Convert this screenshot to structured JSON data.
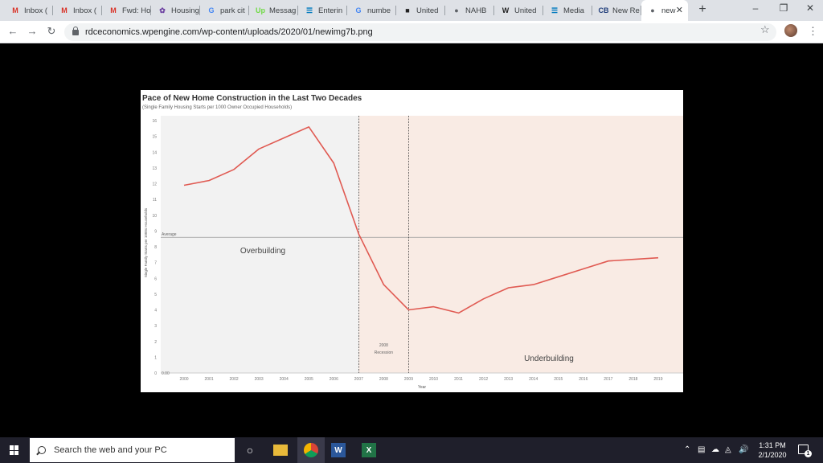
{
  "browser": {
    "tabs": [
      {
        "label": "Inbox (",
        "icon": "gmail-icon",
        "fav": "M",
        "color": "#d93025"
      },
      {
        "label": "Inbox (",
        "icon": "gmail-icon",
        "fav": "M",
        "color": "#d93025"
      },
      {
        "label": "Fwd: Ho",
        "icon": "gmail-icon",
        "fav": "M",
        "color": "#d93025"
      },
      {
        "label": "Housing",
        "icon": "peacock-icon",
        "fav": "✿",
        "color": "#6b3fa0"
      },
      {
        "label": "park cit",
        "icon": "google-icon",
        "fav": "G",
        "color": "#4285f4"
      },
      {
        "label": "Messag",
        "icon": "upwork-icon",
        "fav": "Up",
        "color": "#6fda44"
      },
      {
        "label": "Enterin",
        "icon": "trello-icon",
        "fav": "☰",
        "color": "#0079bf"
      },
      {
        "label": "numbe",
        "icon": "google-icon",
        "fav": "G",
        "color": "#4285f4"
      },
      {
        "label": "United",
        "icon": "census-icon",
        "fav": "■",
        "color": "#222"
      },
      {
        "label": "NAHB",
        "icon": "globe-icon",
        "fav": "●",
        "color": "#5f6368"
      },
      {
        "label": "United",
        "icon": "wikipedia-icon",
        "fav": "W",
        "color": "#222"
      },
      {
        "label": "Media",
        "icon": "trello-icon",
        "fav": "☰",
        "color": "#0079bf"
      },
      {
        "label": "New Re",
        "icon": "cb-icon",
        "fav": "CB",
        "color": "#1f3d7a"
      },
      {
        "label": "new",
        "icon": "globe-icon",
        "fav": "●",
        "color": "#5f6368"
      }
    ],
    "new_tab": "+",
    "minimize": "–",
    "restore": "❐",
    "close": "✕",
    "url": "rdceconomics.wpengine.com/wp-content/uploads/2020/01/newimg7b.png"
  },
  "chart_data": {
    "type": "line",
    "title": "Pace of New Home Construction in the Last Two Decades",
    "subtitle": "(Single Family Housing Starts per 1000 Owner Occupied Households)",
    "xlabel": "Year",
    "ylabel": "Single Family Starts per 1000s Households",
    "x": [
      2000,
      2001,
      2002,
      2003,
      2004,
      2005,
      2006,
      2007,
      2008,
      2009,
      2010,
      2011,
      2012,
      2013,
      2014,
      2015,
      2016,
      2017,
      2018,
      2019
    ],
    "y": [
      11.9,
      12.2,
      12.9,
      14.2,
      14.9,
      15.6,
      13.3,
      8.8,
      5.6,
      4.0,
      4.2,
      3.8,
      4.7,
      5.4,
      5.6,
      6.1,
      6.6,
      7.1,
      7.2,
      7.3
    ],
    "ylim": [
      0,
      16
    ],
    "yticks": [
      0,
      1,
      2,
      3,
      4,
      5,
      6,
      7,
      8,
      9,
      10,
      11,
      12,
      13,
      14,
      15,
      16
    ],
    "zero_label": "0.00",
    "average": 8.6,
    "average_label": "Average",
    "recession": {
      "start": 2007,
      "end": 2009,
      "label_line1": "2008",
      "label_line2": "Recession"
    },
    "annotations": {
      "over": "Overbuilding",
      "under": "Underbuilding"
    },
    "colors": {
      "line": "#e05a52",
      "left_bg": "#f2f2f2",
      "right_bg": "#f9ebe4",
      "avg_line": "#999999"
    }
  },
  "taskbar": {
    "search_placeholder": "Search the web and your PC",
    "time": "1:31 PM",
    "date": "2/1/2020",
    "notification_count": "1"
  }
}
